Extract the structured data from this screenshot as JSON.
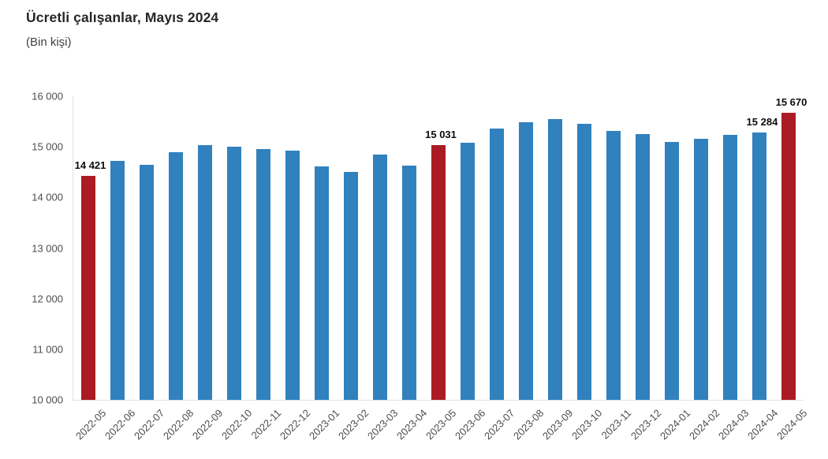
{
  "header": {
    "title": "Ücretli çalışanlar, Mayıs 2024",
    "subtitle": "(Bin kişi)"
  },
  "colors": {
    "bar": "#3081be",
    "highlight": "#ab1b23",
    "axis_line": "#e0e0e0",
    "tick_text": "#4d4d4d",
    "value_label_text": "#0d0d0d"
  },
  "chart_data": {
    "type": "bar",
    "title": "Ücretli çalışanlar, Mayıs 2024",
    "subtitle": "(Bin kişi)",
    "xlabel": "",
    "ylabel": "",
    "ylim": [
      10000,
      16000
    ],
    "grid": false,
    "legend": "none",
    "yticks": [
      {
        "value": 16000,
        "label": "16 000"
      },
      {
        "value": 15000,
        "label": "15 000"
      },
      {
        "value": 14000,
        "label": "14 000"
      },
      {
        "value": 13000,
        "label": "13 000"
      },
      {
        "value": 12000,
        "label": "12 000"
      },
      {
        "value": 11000,
        "label": "11 000"
      },
      {
        "value": 10000,
        "label": "10 000"
      }
    ],
    "categories": [
      "2022-05",
      "2022-06",
      "2022-07",
      "2022-08",
      "2022-09",
      "2022-10",
      "2022-11",
      "2022-12",
      "2023-01",
      "2023-02",
      "2023-03",
      "2023-04",
      "2023-05",
      "2023-06",
      "2023-07",
      "2023-08",
      "2023-09",
      "2023-10",
      "2023-11",
      "2023-12",
      "2024-01",
      "2024-02",
      "2024-03",
      "2024-04",
      "2024-05"
    ],
    "values": [
      14421,
      14720,
      14640,
      14890,
      15030,
      15000,
      14950,
      14920,
      14620,
      14510,
      14840,
      14630,
      15031,
      15080,
      15360,
      15480,
      15550,
      15460,
      15310,
      15250,
      15100,
      15160,
      15240,
      15284,
      15670
    ],
    "highlighted_indices": [
      0,
      12,
      24
    ],
    "value_labels": [
      {
        "index": 0,
        "text": "14 421"
      },
      {
        "index": 12,
        "text": "15 031"
      },
      {
        "index": 23,
        "text": "15 284"
      },
      {
        "index": 24,
        "text": "15 670"
      }
    ]
  }
}
